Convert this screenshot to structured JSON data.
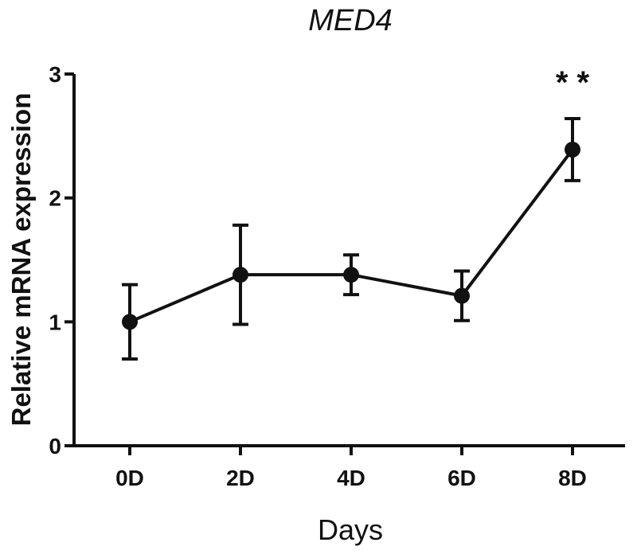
{
  "chart_data": {
    "type": "line",
    "title": "MED4",
    "xlabel": "Days",
    "ylabel": "Relative mRNA expression",
    "categories": [
      "0D",
      "2D",
      "4D",
      "6D",
      "8D"
    ],
    "series": [
      {
        "name": "MED4",
        "values": [
          1.0,
          1.38,
          1.38,
          1.21,
          2.39
        ],
        "error": [
          0.3,
          0.4,
          0.16,
          0.2,
          0.25
        ]
      }
    ],
    "ylim": [
      0,
      3
    ],
    "yticks": [
      0,
      1,
      2,
      3
    ],
    "annotations": [
      {
        "category": "8D",
        "text": "* *"
      }
    ],
    "grid": false,
    "color": "#111111"
  }
}
